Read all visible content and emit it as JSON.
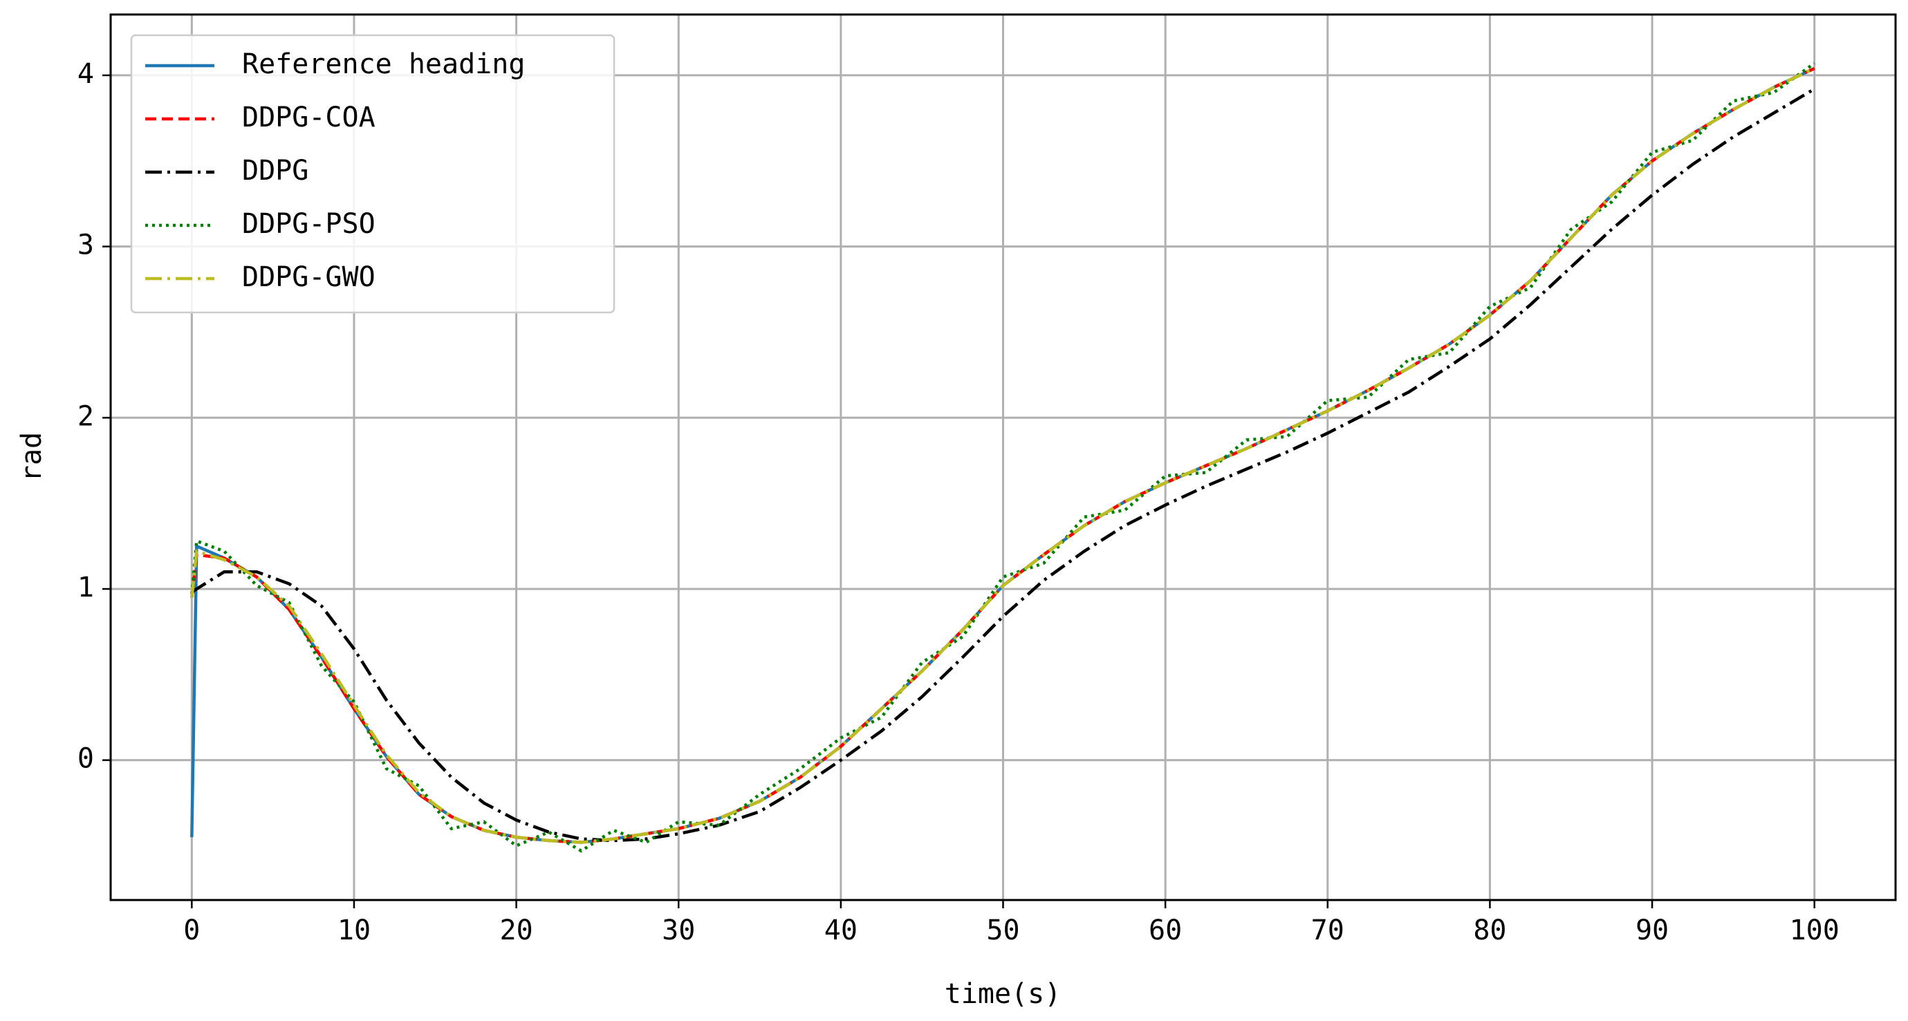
{
  "chart_data": {
    "type": "line",
    "xlabel": "time(s)",
    "ylabel": "rad",
    "x": [
      0,
      0.3,
      2,
      4,
      6,
      8,
      10,
      12,
      14,
      16,
      18,
      20,
      22,
      24,
      26,
      28,
      30,
      32.5,
      35,
      37.5,
      40,
      42.5,
      45,
      47.5,
      50,
      52.5,
      55,
      57.5,
      60,
      62.5,
      65,
      67.5,
      70,
      72.5,
      75,
      77.5,
      80,
      82.5,
      85,
      87.5,
      90,
      92.5,
      95,
      97.5,
      100
    ],
    "series": [
      {
        "name": "Reference heading",
        "color": "#1f77b4",
        "dash": "solid",
        "values": [
          -0.45,
          1.25,
          1.18,
          1.07,
          0.88,
          0.6,
          0.3,
          0.02,
          -0.2,
          -0.33,
          -0.41,
          -0.45,
          -0.47,
          -0.48,
          -0.46,
          -0.43,
          -0.4,
          -0.34,
          -0.24,
          -0.1,
          0.08,
          0.3,
          0.52,
          0.76,
          1.02,
          1.2,
          1.37,
          1.51,
          1.62,
          1.72,
          1.82,
          1.93,
          2.04,
          2.16,
          2.29,
          2.43,
          2.6,
          2.8,
          3.05,
          3.3,
          3.5,
          3.66,
          3.8,
          3.93,
          4.04
        ]
      },
      {
        "name": "DDPG-COA",
        "color": "#ff0000",
        "dash": "dashed",
        "values": [
          0.95,
          1.2,
          1.18,
          1.07,
          0.88,
          0.6,
          0.3,
          0.02,
          -0.2,
          -0.33,
          -0.41,
          -0.45,
          -0.47,
          -0.48,
          -0.46,
          -0.43,
          -0.4,
          -0.34,
          -0.24,
          -0.1,
          0.08,
          0.3,
          0.52,
          0.76,
          1.02,
          1.2,
          1.37,
          1.51,
          1.62,
          1.72,
          1.82,
          1.93,
          2.04,
          2.16,
          2.29,
          2.43,
          2.6,
          2.8,
          3.05,
          3.3,
          3.5,
          3.66,
          3.8,
          3.93,
          4.04
        ]
      },
      {
        "name": "DDPG",
        "color": "#000000",
        "dash": "dashdot",
        "values": [
          0.98,
          1.0,
          1.1,
          1.1,
          1.03,
          0.9,
          0.65,
          0.35,
          0.1,
          -0.1,
          -0.25,
          -0.35,
          -0.42,
          -0.46,
          -0.47,
          -0.46,
          -0.43,
          -0.38,
          -0.3,
          -0.16,
          0.0,
          0.17,
          0.37,
          0.6,
          0.84,
          1.05,
          1.22,
          1.37,
          1.49,
          1.6,
          1.7,
          1.8,
          1.91,
          2.03,
          2.15,
          2.3,
          2.46,
          2.66,
          2.88,
          3.1,
          3.3,
          3.48,
          3.64,
          3.78,
          3.92
        ]
      },
      {
        "name": "DDPG-PSO",
        "color": "#008000",
        "dash": "dotted",
        "values": [
          0.97,
          1.28,
          1.22,
          1.02,
          0.92,
          0.55,
          0.34,
          -0.05,
          -0.15,
          -0.4,
          -0.36,
          -0.5,
          -0.42,
          -0.53,
          -0.41,
          -0.48,
          -0.36,
          -0.38,
          -0.2,
          -0.05,
          0.13,
          0.25,
          0.57,
          0.72,
          1.07,
          1.15,
          1.42,
          1.46,
          1.66,
          1.68,
          1.87,
          1.89,
          2.1,
          2.12,
          2.34,
          2.38,
          2.65,
          2.76,
          3.1,
          3.26,
          3.55,
          3.62,
          3.85,
          3.9,
          4.07
        ]
      },
      {
        "name": "DDPG-GWO",
        "color": "#bcbd22",
        "dash": "dashdot",
        "values": [
          0.95,
          1.22,
          1.17,
          1.07,
          0.9,
          0.62,
          0.32,
          0.03,
          -0.19,
          -0.33,
          -0.41,
          -0.45,
          -0.47,
          -0.48,
          -0.46,
          -0.43,
          -0.4,
          -0.34,
          -0.24,
          -0.1,
          0.08,
          0.3,
          0.52,
          0.76,
          1.02,
          1.2,
          1.37,
          1.51,
          1.62,
          1.72,
          1.82,
          1.93,
          2.04,
          2.16,
          2.29,
          2.43,
          2.6,
          2.8,
          3.05,
          3.3,
          3.5,
          3.66,
          3.8,
          3.93,
          4.04
        ]
      }
    ],
    "xlim": [
      -5,
      105
    ],
    "ylim": [
      -0.817,
      4.355
    ],
    "xticks": [
      0,
      10,
      20,
      30,
      40,
      50,
      60,
      70,
      80,
      90,
      100
    ],
    "yticks": [
      0,
      1,
      2,
      3,
      4
    ],
    "grid": true,
    "legend": "upper left"
  }
}
